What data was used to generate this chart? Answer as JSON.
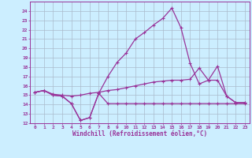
{
  "xlabel": "Windchill (Refroidissement éolien,°C)",
  "bg_color": "#cceeff",
  "grid_color": "#aabbcc",
  "line_color": "#993399",
  "xlim": [
    -0.5,
    23.5
  ],
  "ylim": [
    12,
    25
  ],
  "xticks": [
    0,
    1,
    2,
    3,
    4,
    5,
    6,
    7,
    8,
    9,
    10,
    11,
    12,
    13,
    14,
    15,
    16,
    17,
    18,
    19,
    20,
    21,
    22,
    23
  ],
  "yticks": [
    12,
    13,
    14,
    15,
    16,
    17,
    18,
    19,
    20,
    21,
    22,
    23,
    24
  ],
  "line1_x": [
    0,
    1,
    2,
    3,
    4,
    5,
    6,
    7,
    8,
    9,
    10,
    11,
    12,
    13,
    14,
    15,
    16,
    17,
    18,
    19,
    20,
    21,
    22,
    23
  ],
  "line1_y": [
    15.3,
    15.5,
    15.0,
    14.9,
    14.1,
    12.3,
    12.6,
    15.2,
    14.1,
    14.1,
    14.1,
    14.1,
    14.1,
    14.1,
    14.1,
    14.1,
    14.1,
    14.1,
    14.1,
    14.1,
    14.1,
    14.1,
    14.1,
    14.1
  ],
  "line2_x": [
    0,
    1,
    2,
    3,
    4,
    5,
    6,
    7,
    8,
    9,
    10,
    11,
    12,
    13,
    14,
    15,
    16,
    17,
    18,
    19,
    20,
    21,
    22,
    23
  ],
  "line2_y": [
    15.3,
    15.5,
    15.1,
    15.0,
    14.9,
    15.0,
    15.2,
    15.3,
    15.5,
    15.6,
    15.8,
    16.0,
    16.2,
    16.4,
    16.5,
    16.6,
    16.6,
    16.7,
    17.9,
    16.6,
    16.6,
    14.9,
    14.2,
    14.2
  ],
  "line3_x": [
    0,
    1,
    2,
    3,
    4,
    5,
    6,
    7,
    8,
    9,
    10,
    11,
    12,
    13,
    14,
    15,
    16,
    17,
    18,
    19,
    20,
    21,
    22,
    23
  ],
  "line3_y": [
    15.3,
    15.5,
    15.0,
    14.9,
    14.1,
    12.3,
    12.6,
    15.2,
    17.0,
    18.5,
    19.5,
    21.0,
    21.7,
    22.5,
    23.2,
    24.3,
    22.2,
    18.4,
    16.2,
    16.6,
    18.1,
    14.9,
    14.2,
    14.2
  ]
}
